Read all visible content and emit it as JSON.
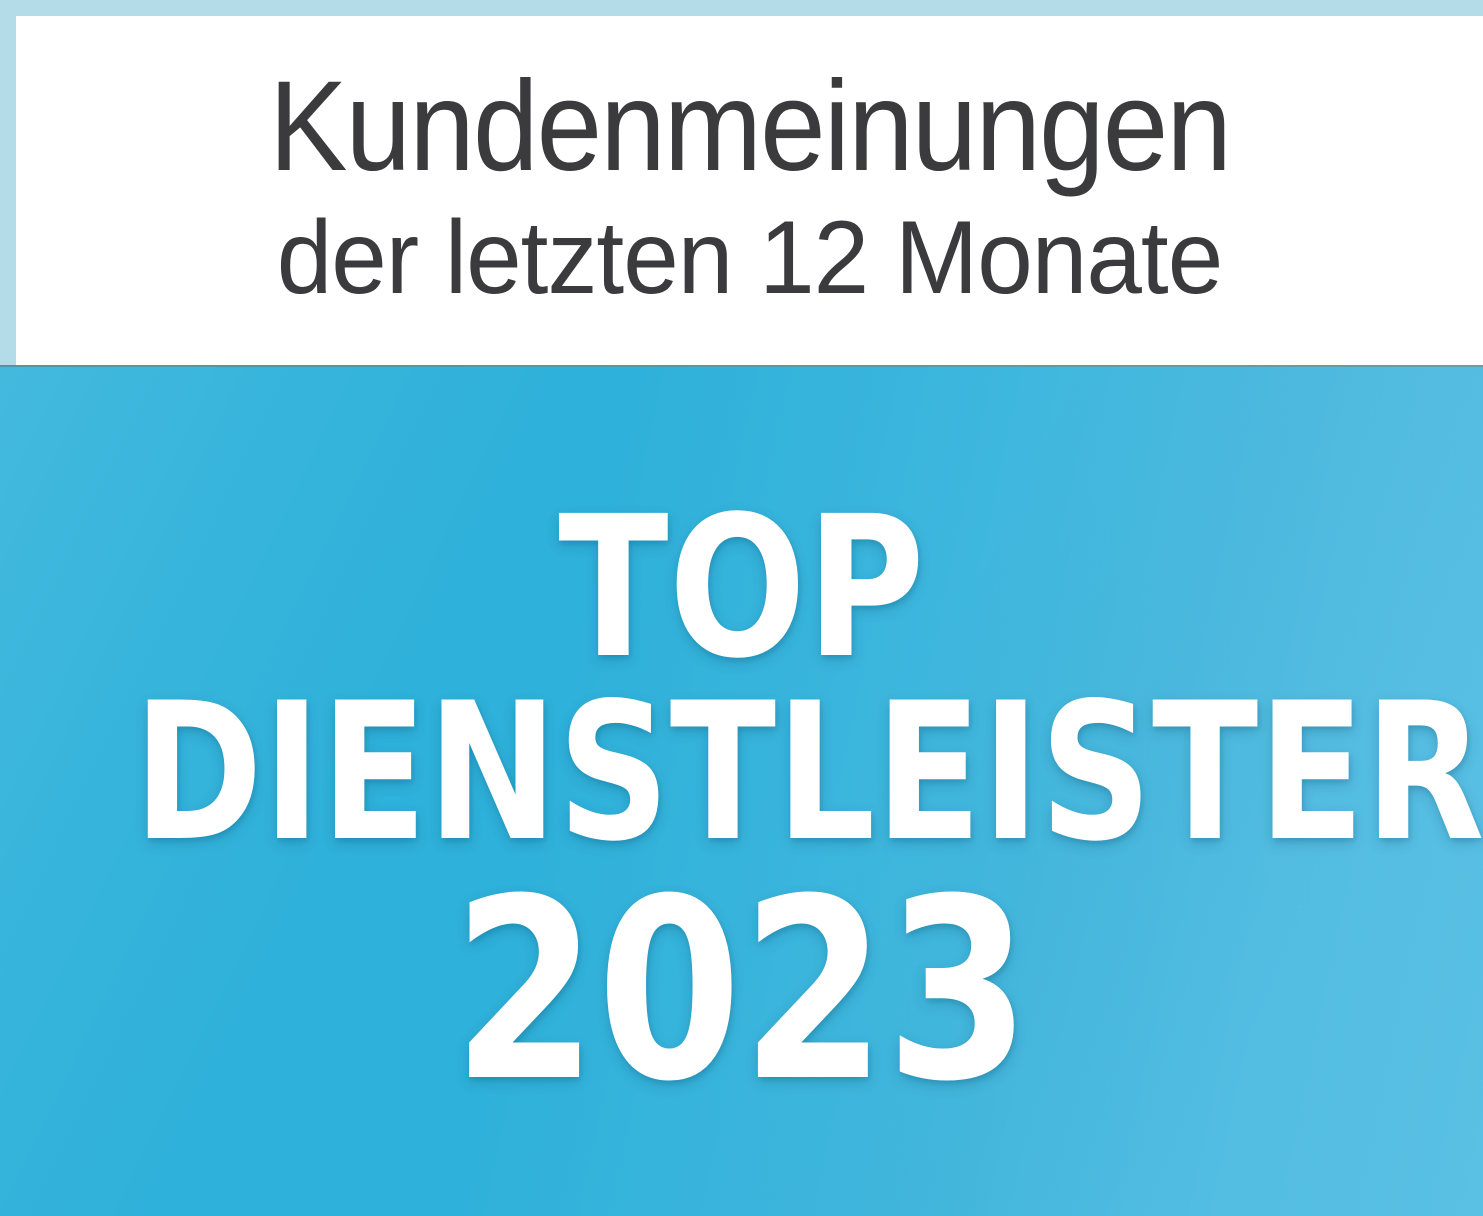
{
  "badge": {
    "header": {
      "title": "Kundenmeinungen",
      "subtitle": "der letzten 12 Monate"
    },
    "award": {
      "word1": "TOP",
      "word2": "DIENSTLEISTER",
      "year": "2023"
    },
    "colors": {
      "frame": "#b4dce8",
      "panel_bg": "#ffffff",
      "header_text": "#3b3b3d",
      "award_text": "#ffffff",
      "blue_gradient_start": "#2eb1da",
      "blue_gradient_end": "#5ac0e4",
      "divider_line": "#6e827d"
    }
  }
}
